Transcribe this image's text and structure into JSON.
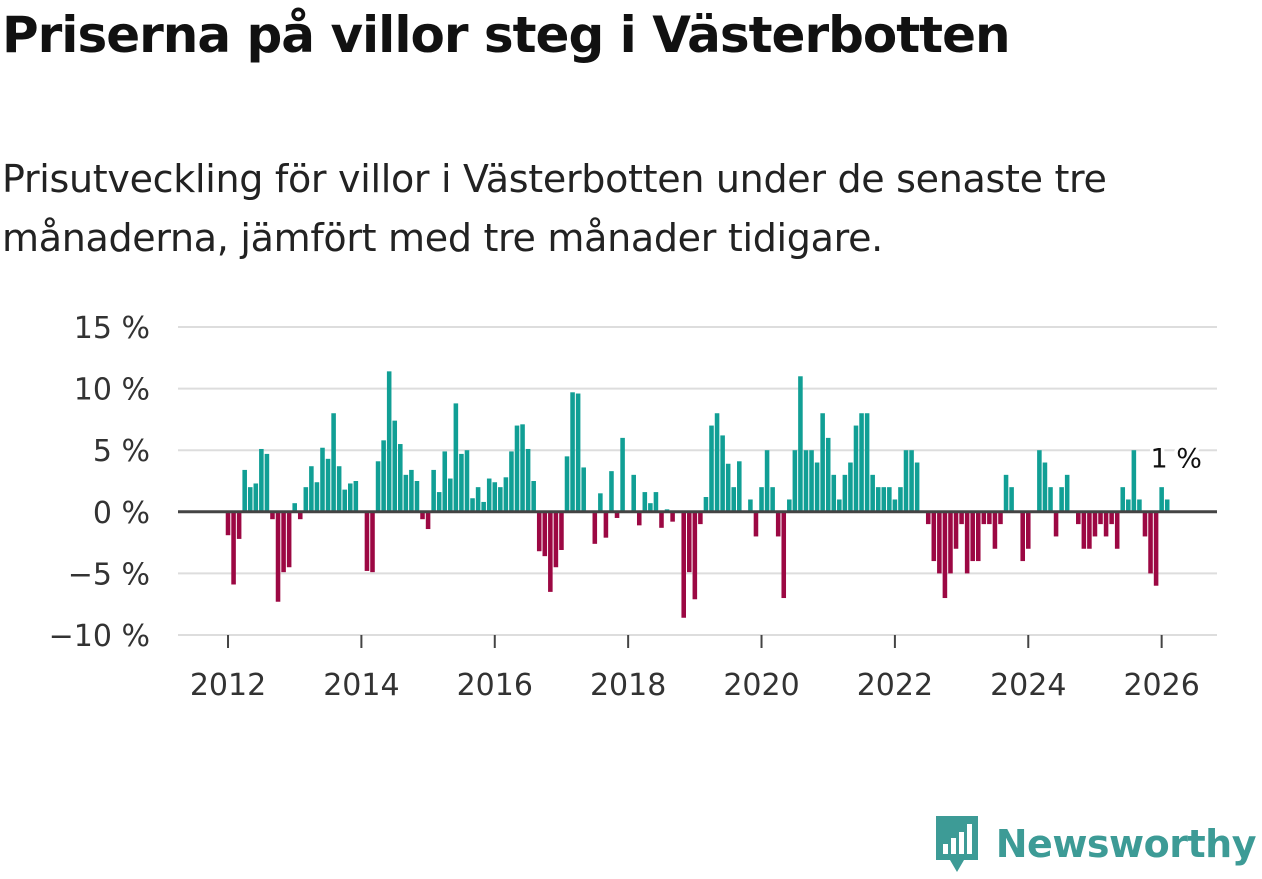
{
  "title": "Priserna på villor steg i Västerbotten",
  "subtitle": "Prisutveckling för villor i Västerbotten under de senaste tre månaderna, jämfört med tre månader tidigare.",
  "brand": {
    "name": "Newsworthy",
    "color": "#3d9b96"
  },
  "colors": {
    "positive": "#119f95",
    "negative": "#9c0843",
    "grid": "#dddddd",
    "zero": "#444444",
    "text": "#333333"
  },
  "chart_data": {
    "type": "bar",
    "title": "",
    "xlabel": "",
    "ylabel": "",
    "ylim": [
      -10,
      15
    ],
    "yticks": [
      -10,
      -5,
      0,
      5,
      10,
      15
    ],
    "ytick_labels": [
      "−10 %",
      "−5 %",
      "0 %",
      "5 %",
      "10 %",
      "15 %"
    ],
    "xlim": [
      2011.25,
      2026.83
    ],
    "xticks": [
      2012,
      2014,
      2016,
      2018,
      2020,
      2022,
      2024,
      2026
    ],
    "xtick_labels": [
      "2012",
      "2014",
      "2016",
      "2018",
      "2020",
      "2022",
      "2024",
      "2026"
    ],
    "start": {
      "year": 2012,
      "month": 1
    },
    "unit": "%",
    "annotation": {
      "text": "1 %",
      "index": 169
    },
    "values": [
      -1.9,
      -5.9,
      -2.2,
      3.4,
      2.0,
      2.3,
      5.1,
      4.7,
      -0.6,
      -7.3,
      -4.9,
      -4.5,
      0.7,
      -0.6,
      2.0,
      3.7,
      2.4,
      5.2,
      4.3,
      8.0,
      3.7,
      1.8,
      2.3,
      2.5,
      0.0,
      -4.8,
      -4.9,
      4.1,
      5.8,
      11.4,
      7.4,
      5.5,
      3.0,
      3.4,
      2.5,
      -0.6,
      -1.4,
      3.4,
      1.6,
      4.9,
      2.7,
      8.8,
      4.7,
      5.0,
      1.1,
      2.0,
      0.8,
      2.7,
      2.4,
      2.0,
      2.8,
      4.9,
      7.0,
      7.1,
      5.1,
      2.5,
      -3.2,
      -3.6,
      -6.5,
      -4.5,
      -3.1,
      4.5,
      9.7,
      9.6,
      3.6,
      0.0,
      -2.6,
      1.5,
      -2.1,
      3.3,
      -0.5,
      6.0,
      0.0,
      3.0,
      -1.1,
      1.6,
      0.7,
      1.6,
      -1.3,
      0.2,
      -0.8,
      0.1,
      -8.6,
      -4.9,
      -7.1,
      -1.0,
      1.2,
      7.0,
      8.0,
      6.2,
      3.9,
      2.0,
      4.1,
      0.0,
      1.0,
      -2.0,
      2.0,
      5.0,
      2.0,
      -2.0,
      -7.0,
      1.0,
      5.0,
      11.0,
      5.0,
      5.0,
      4.0,
      8.0,
      6.0,
      3.0,
      1.0,
      3.0,
      4.0,
      7.0,
      8.0,
      8.0,
      3.0,
      2.0,
      2.0,
      2.0,
      1.0,
      2.0,
      5.0,
      5.0,
      4.0,
      0.0,
      -1.0,
      -4.0,
      -5.0,
      -7.0,
      -5.0,
      -3.0,
      -1.0,
      -5.0,
      -4.0,
      -4.0,
      -1.0,
      -1.0,
      -3.0,
      -1.0,
      3.0,
      2.0,
      0.0,
      -4.0,
      -3.0,
      0.0,
      5.0,
      4.0,
      2.0,
      -2.0,
      2.0,
      3.0,
      0.0,
      -1.0,
      -3.0,
      -3.0,
      -2.0,
      -1.0,
      -2.0,
      -1.0,
      -3.0,
      2.0,
      1.0,
      5.0,
      1.0,
      -2.0,
      -5.0,
      -6.0,
      2.0,
      1.0
    ]
  }
}
